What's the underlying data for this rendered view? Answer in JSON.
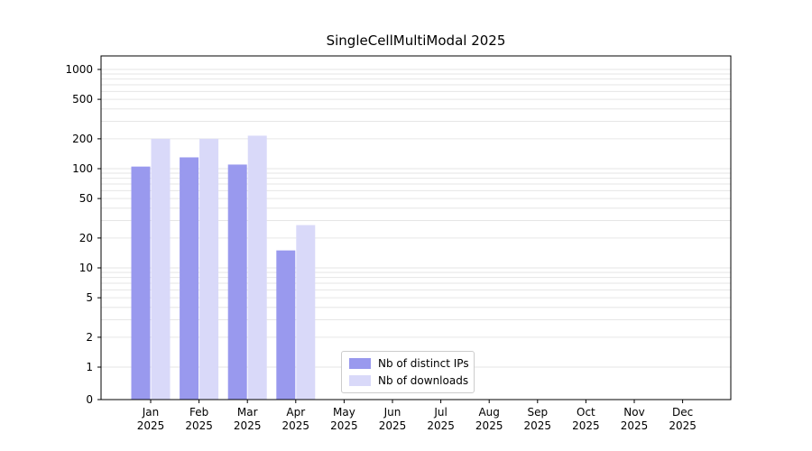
{
  "chart_data": {
    "type": "bar",
    "title": "SingleCellMultiModal 2025",
    "year": "2025",
    "categories": [
      "Jan",
      "Feb",
      "Mar",
      "Apr",
      "May",
      "Jun",
      "Jul",
      "Aug",
      "Sep",
      "Oct",
      "Nov",
      "Dec"
    ],
    "series": [
      {
        "name": "Nb of distinct IPs",
        "color": "#9999ee",
        "values": [
          105,
          130,
          110,
          15,
          0,
          0,
          0,
          0,
          0,
          0,
          0,
          0
        ]
      },
      {
        "name": "Nb of downloads",
        "color": "#d9d9f9",
        "values": [
          200,
          200,
          215,
          27,
          0,
          0,
          0,
          0,
          0,
          0,
          0,
          0
        ]
      }
    ],
    "yscale": "symlog",
    "yticks": [
      0,
      1,
      2,
      5,
      10,
      20,
      50,
      100,
      200,
      500,
      1000
    ],
    "ylim": [
      0,
      1000
    ],
    "grid": true,
    "legend_position": "inside lower center",
    "gridline_color": "#e6e6e6",
    "spine_color": "#000000",
    "tick_label_color": "#000000",
    "tick_font_size": 12
  }
}
